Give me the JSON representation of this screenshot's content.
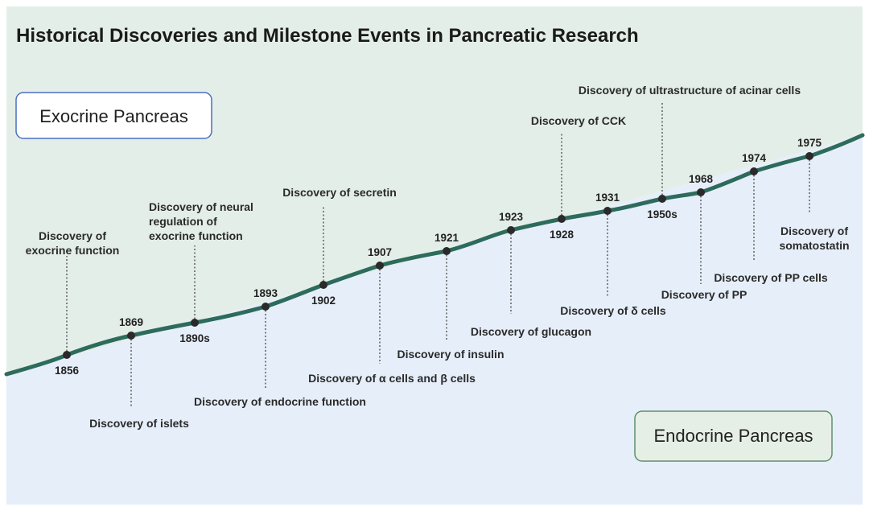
{
  "title": "Historical Discoveries and Milestone Events in Pancreatic Research",
  "zones": {
    "exocrine": "Exocrine Pancreas",
    "endocrine": "Endocrine Pancreas"
  },
  "colors": {
    "exocrine_bg": "#e4eee8",
    "endocrine_bg": "#e6eef9",
    "timeline": "#2d6b5c",
    "marker": "#2a2a2a",
    "exocrine_box_border": "#4a6fc0",
    "endocrine_box_border": "#5f8f6a",
    "endocrine_box_fill": "#e6efe6"
  },
  "milestones": [
    {
      "year": "1856",
      "event": [
        "Discovery of",
        "exocrine function"
      ],
      "zone": "exocrine"
    },
    {
      "year": "1869",
      "event": [
        "Discovery of islets"
      ],
      "zone": "endocrine"
    },
    {
      "year": "1890s",
      "event": [
        "Discovery of neural",
        "regulation of",
        "exocrine function"
      ],
      "zone": "exocrine"
    },
    {
      "year": "1893",
      "event": [
        "Discovery of endocrine function"
      ],
      "zone": "endocrine"
    },
    {
      "year": "1902",
      "event": [
        "Discovery of secretin"
      ],
      "zone": "exocrine"
    },
    {
      "year": "1907",
      "event": [
        "Discovery of α cells and β cells"
      ],
      "zone": "endocrine"
    },
    {
      "year": "1921",
      "event": [
        "Discovery of insulin"
      ],
      "zone": "endocrine"
    },
    {
      "year": "1923",
      "event": [
        "Discovery of glucagon"
      ],
      "zone": "endocrine"
    },
    {
      "year": "1928",
      "event": [
        "Discovery of CCK"
      ],
      "zone": "exocrine"
    },
    {
      "year": "1931",
      "event": [
        "Discovery of δ cells"
      ],
      "zone": "endocrine"
    },
    {
      "year": "1950s",
      "event": [
        "Discovery of ultrastructure of acinar cells"
      ],
      "zone": "exocrine"
    },
    {
      "year": "1968",
      "event": [
        "Discovery of PP"
      ],
      "zone": "endocrine"
    },
    {
      "year": "1974",
      "event": [
        "Discovery of PP cells"
      ],
      "zone": "endocrine"
    },
    {
      "year": "1975",
      "event": [
        "Discovery of",
        "somatostatin"
      ],
      "zone": "endocrine"
    }
  ]
}
